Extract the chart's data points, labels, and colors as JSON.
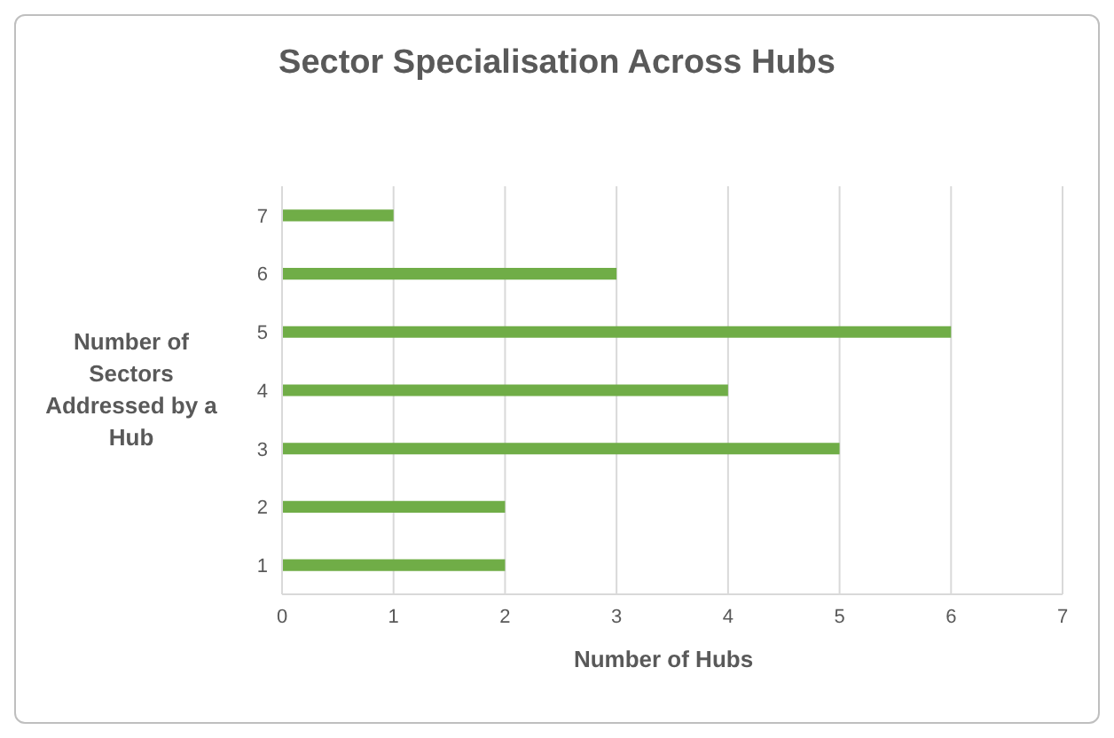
{
  "chart_data": {
    "type": "bar",
    "orientation": "horizontal",
    "title": "Sector Specialisation Across Hubs",
    "xlabel": "Number of Hubs",
    "ylabel": "Number of Sectors Addressed by a Hub",
    "categories": [
      "7",
      "6",
      "5",
      "4",
      "3",
      "2",
      "1"
    ],
    "values": [
      1,
      3,
      6,
      4,
      5,
      2,
      2
    ],
    "color": "#70ad47",
    "xlim": [
      0,
      7
    ],
    "xticks": [
      0,
      1,
      2,
      3,
      4,
      5,
      6,
      7
    ],
    "grid": "x",
    "legend": false
  }
}
